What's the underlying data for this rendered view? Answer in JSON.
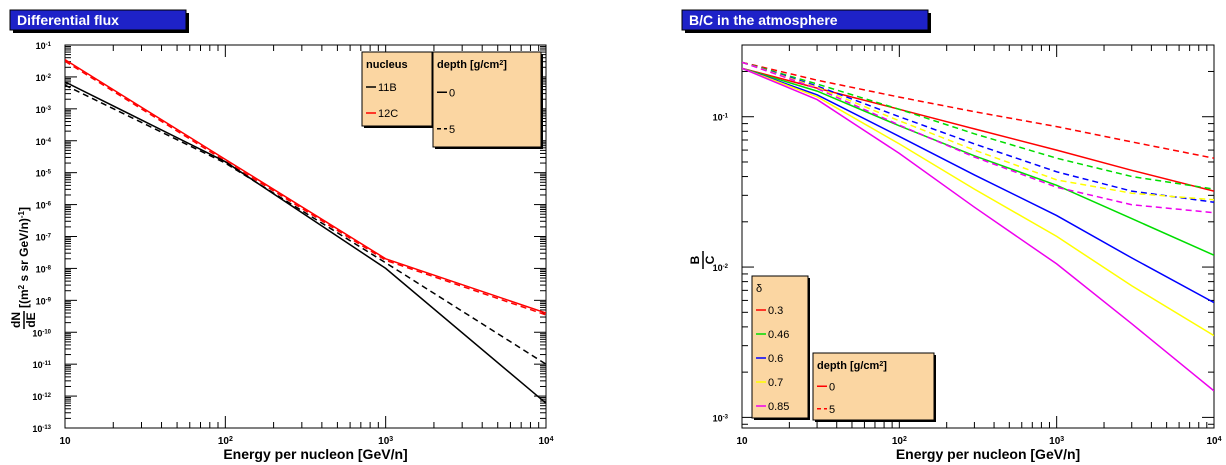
{
  "chart_data": [
    {
      "type": "line",
      "title": "Differential flux",
      "xlabel": "Energy per nucleon [GeV/n]",
      "ylabel": {
        "numerator": "dN",
        "denominator": "dE",
        "units": "[(m",
        "units_sup": "2",
        "units_rest": " s sr GeV/n)",
        "units_end_sup": "-1",
        "units_close": "]"
      },
      "xscale": "log",
      "yscale": "log",
      "xlim": [
        10,
        10000
      ],
      "ylim": [
        1e-13,
        0.1
      ],
      "grid": false,
      "x_ticks": [
        {
          "mant": "10",
          "exp": ""
        },
        {
          "mant": "10",
          "exp": "2"
        },
        {
          "mant": "10",
          "exp": "3"
        },
        {
          "mant": "10",
          "exp": "4"
        }
      ],
      "y_ticks": [
        {
          "mant": "10",
          "exp": "-13"
        },
        {
          "mant": "10",
          "exp": "-12"
        },
        {
          "mant": "10",
          "exp": "-11"
        },
        {
          "mant": "10",
          "exp": "-10"
        },
        {
          "mant": "10",
          "exp": "-9"
        },
        {
          "mant": "10",
          "exp": "-8"
        },
        {
          "mant": "10",
          "exp": "-7"
        },
        {
          "mant": "10",
          "exp": "-6"
        },
        {
          "mant": "10",
          "exp": "-5"
        },
        {
          "mant": "10",
          "exp": "-4"
        },
        {
          "mant": "10",
          "exp": "-3"
        },
        {
          "mant": "10",
          "exp": "-2"
        },
        {
          "mant": "10",
          "exp": "-1"
        }
      ],
      "legends": [
        {
          "title": "nucleus",
          "placement": "top-right",
          "entries": [
            {
              "label": "11B",
              "color": "#000000",
              "dash": "solid"
            },
            {
              "label": "12C",
              "color": "#ff0000",
              "dash": "solid"
            }
          ]
        },
        {
          "title": "depth [g/cm",
          "title_sup": "2",
          "title_close": "]",
          "placement": "top-right",
          "entries": [
            {
              "label": "0",
              "color": "#000000",
              "dash": "solid"
            },
            {
              "label": "5",
              "color": "#000000",
              "dash": "dashed"
            }
          ]
        }
      ],
      "series": [
        {
          "color": "#ff0000",
          "dash": "solid",
          "x": [
            10,
            100,
            1000,
            10000
          ],
          "y": [
            0.035,
            2.6e-05,
            2e-08,
            4e-10
          ]
        },
        {
          "color": "#ff0000",
          "dash": "dashed",
          "x": [
            10,
            100,
            1000,
            10000
          ],
          "y": [
            0.031,
            2.3e-05,
            1.8e-08,
            3.5e-10
          ]
        },
        {
          "color": "#000000",
          "dash": "solid",
          "x": [
            10,
            100,
            1000,
            10000
          ],
          "y": [
            0.007,
            2.2e-05,
            1e-08,
            6e-13
          ]
        },
        {
          "color": "#000000",
          "dash": "dashed",
          "x": [
            10,
            100,
            1000,
            10000
          ],
          "y": [
            0.0055,
            2e-05,
            1.5e-08,
            1e-11
          ]
        }
      ]
    },
    {
      "type": "line",
      "title": "B/C in the atmosphere",
      "xlabel": "Energy per nucleon [GeV/n]",
      "ylabel": {
        "numerator": "B",
        "denominator": "C"
      },
      "xscale": "log",
      "yscale": "log",
      "xlim": [
        10,
        10000
      ],
      "ylim": [
        0.00085,
        0.3
      ],
      "grid": false,
      "x_ticks": [
        {
          "mant": "10",
          "exp": ""
        },
        {
          "mant": "10",
          "exp": "2"
        },
        {
          "mant": "10",
          "exp": "3"
        },
        {
          "mant": "10",
          "exp": "4"
        }
      ],
      "y_ticks": [
        {
          "mant": "10",
          "exp": "-3"
        },
        {
          "mant": "10",
          "exp": "-2"
        },
        {
          "mant": "10",
          "exp": "-1"
        }
      ],
      "legends": [
        {
          "title": "δ",
          "placement": "bottom-left",
          "entries": [
            {
              "label": "0.3",
              "color": "#ff0000",
              "dash": "solid"
            },
            {
              "label": "0.46",
              "color": "#00dd00",
              "dash": "solid"
            },
            {
              "label": "0.6",
              "color": "#0000ff",
              "dash": "solid"
            },
            {
              "label": "0.7",
              "color": "#ffff00",
              "dash": "solid"
            },
            {
              "label": "0.85",
              "color": "#ee00ee",
              "dash": "solid"
            }
          ]
        },
        {
          "title": "depth [g/cm",
          "title_sup": "2",
          "title_close": "]",
          "placement": "bottom-left",
          "entries": [
            {
              "label": "0",
              "color": "#ff0000",
              "dash": "solid"
            },
            {
              "label": "5",
              "color": "#ff0000",
              "dash": "dashed"
            }
          ]
        }
      ],
      "series": [
        {
          "color": "#ff0000",
          "dash": "solid",
          "x": [
            10,
            30,
            100,
            300,
            1000,
            3000,
            10000
          ],
          "y": [
            0.21,
            0.155,
            0.112,
            0.083,
            0.06,
            0.044,
            0.032
          ]
        },
        {
          "color": "#00dd00",
          "dash": "solid",
          "x": [
            10,
            30,
            100,
            300,
            1000,
            3000,
            10000
          ],
          "y": [
            0.21,
            0.148,
            0.087,
            0.055,
            0.035,
            0.021,
            0.012
          ]
        },
        {
          "color": "#0000ff",
          "dash": "solid",
          "x": [
            10,
            30,
            100,
            300,
            1000,
            3000,
            10000
          ],
          "y": [
            0.21,
            0.14,
            0.074,
            0.041,
            0.022,
            0.0115,
            0.0058
          ]
        },
        {
          "color": "#ffff00",
          "dash": "solid",
          "x": [
            10,
            30,
            100,
            300,
            1000,
            3000,
            10000
          ],
          "y": [
            0.21,
            0.136,
            0.066,
            0.033,
            0.016,
            0.0075,
            0.0035
          ]
        },
        {
          "color": "#ee00ee",
          "dash": "solid",
          "x": [
            10,
            30,
            100,
            300,
            1000,
            3000,
            10000
          ],
          "y": [
            0.21,
            0.13,
            0.057,
            0.025,
            0.0105,
            0.0042,
            0.0015
          ]
        },
        {
          "color": "#ff0000",
          "dash": "dashed",
          "x": [
            10,
            30,
            100,
            300,
            1000,
            3000,
            10000
          ],
          "y": [
            0.23,
            0.175,
            0.135,
            0.108,
            0.086,
            0.068,
            0.053
          ]
        },
        {
          "color": "#00dd00",
          "dash": "dashed",
          "x": [
            10,
            30,
            100,
            300,
            1000,
            3000,
            10000
          ],
          "y": [
            0.23,
            0.165,
            0.112,
            0.077,
            0.053,
            0.04,
            0.033
          ]
        },
        {
          "color": "#0000ff",
          "dash": "dashed",
          "x": [
            10,
            30,
            100,
            300,
            1000,
            3000,
            10000
          ],
          "y": [
            0.23,
            0.16,
            0.1,
            0.066,
            0.043,
            0.032,
            0.027
          ]
        },
        {
          "color": "#ffff00",
          "dash": "dashed",
          "x": [
            10,
            30,
            100,
            300,
            1000,
            3000,
            10000
          ],
          "y": [
            0.23,
            0.157,
            0.094,
            0.06,
            0.038,
            0.031,
            0.028
          ]
        },
        {
          "color": "#ee00ee",
          "dash": "dashed",
          "x": [
            10,
            30,
            100,
            300,
            1000,
            3000,
            10000
          ],
          "y": [
            0.23,
            0.154,
            0.088,
            0.054,
            0.034,
            0.026,
            0.023
          ]
        }
      ]
    }
  ]
}
